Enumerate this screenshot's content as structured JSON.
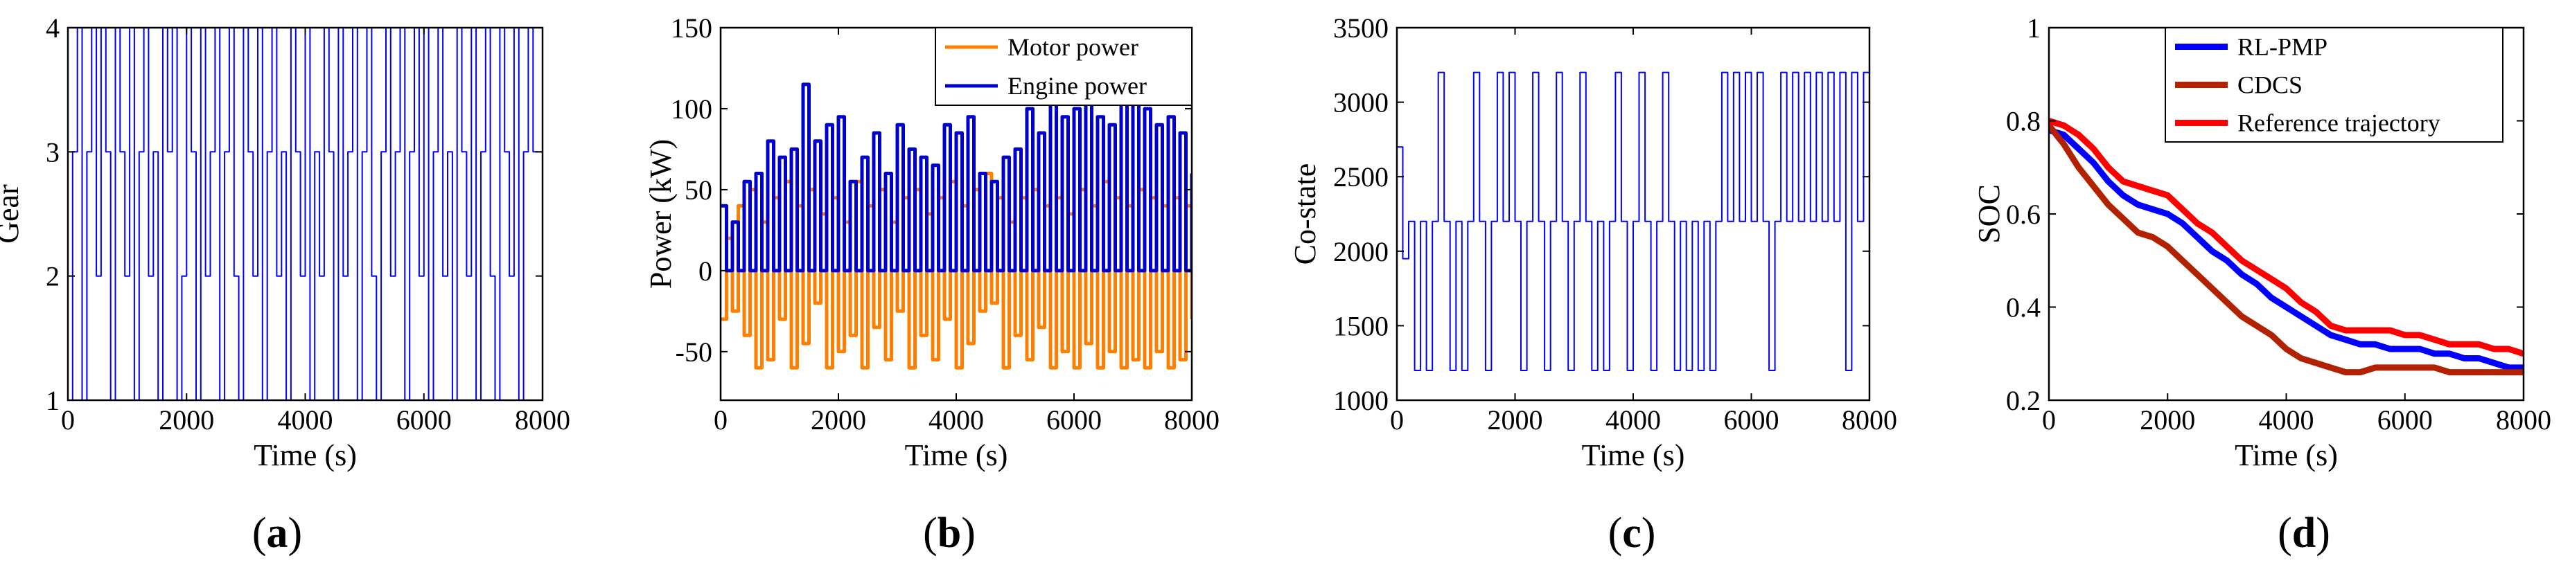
{
  "figure": {
    "panels": [
      {
        "label_open": "(",
        "label_letter": "a",
        "label_close": ")"
      },
      {
        "label_open": "(",
        "label_letter": "b",
        "label_close": ")"
      },
      {
        "label_open": "(",
        "label_letter": "c",
        "label_close": ")"
      },
      {
        "label_open": "(",
        "label_letter": "d",
        "label_close": ")"
      }
    ]
  },
  "chart_data": [
    {
      "type": "line",
      "title": "",
      "xlabel": "Time (s)",
      "ylabel": "Gear",
      "xlim": [
        0,
        8000
      ],
      "ylim": [
        1,
        4
      ],
      "xticks": [
        0,
        2000,
        4000,
        6000,
        8000
      ],
      "yticks": [
        1,
        2,
        3,
        4
      ],
      "series": [
        {
          "color": "#0000ff",
          "x": [
            0,
            80,
            160,
            240,
            320,
            400,
            480,
            560,
            640,
            720,
            800,
            880,
            960,
            1040,
            1120,
            1200,
            1280,
            1360,
            1440,
            1520,
            1600,
            1680,
            1760,
            1840,
            1920,
            2000,
            2080,
            2160,
            2240,
            2320,
            2400,
            2480,
            2560,
            2640,
            2720,
            2800,
            2880,
            2960,
            3040,
            3120,
            3200,
            3280,
            3360,
            3440,
            3520,
            3600,
            3680,
            3760,
            3840,
            3920,
            4000,
            4080,
            4160,
            4240,
            4320,
            4400,
            4480,
            4560,
            4640,
            4720,
            4800,
            4880,
            4960,
            5040,
            5120,
            5200,
            5280,
            5360,
            5440,
            5520,
            5600,
            5680,
            5760,
            5840,
            5920,
            6000,
            6080,
            6160,
            6240,
            6320,
            6400,
            6480,
            6560,
            6640,
            6720,
            6800,
            6880,
            6960,
            7040,
            7120,
            7200,
            7280,
            7360,
            7440,
            7520,
            7600,
            7680,
            7760,
            7840,
            7920,
            8000
          ],
          "values": [
            1,
            3,
            4,
            1,
            3,
            4,
            2,
            4,
            3,
            1,
            4,
            3,
            2,
            4,
            1,
            3,
            4,
            2,
            3,
            1,
            4,
            3,
            4,
            1,
            2,
            4,
            3,
            1,
            4,
            2,
            3,
            4,
            1,
            3,
            4,
            2,
            1,
            4,
            3,
            2,
            4,
            1,
            3,
            4,
            2,
            3,
            1,
            4,
            3,
            2,
            4,
            1,
            3,
            2,
            4,
            3,
            1,
            4,
            2,
            3,
            4,
            1,
            3,
            4,
            2,
            1,
            3,
            4,
            2,
            3,
            4,
            1,
            3,
            4,
            2,
            4,
            1,
            3,
            4,
            2,
            3,
            1,
            4,
            3,
            2,
            4,
            1,
            3,
            4,
            2,
            1,
            4,
            3,
            2,
            4,
            1,
            3,
            4,
            3,
            3,
            3
          ]
        }
      ]
    },
    {
      "type": "line",
      "title": "",
      "xlabel": "Time (s)",
      "ylabel": "Power (kW)",
      "xlim": [
        0,
        8000
      ],
      "ylim": [
        -80,
        150
      ],
      "xticks": [
        0,
        2000,
        4000,
        6000,
        8000
      ],
      "yticks": [
        -50,
        0,
        50,
        100,
        150
      ],
      "legend_position": "top-right",
      "series": [
        {
          "name": "Motor power",
          "color": "#ff8000",
          "x": [
            0,
            100,
            200,
            300,
            400,
            500,
            600,
            700,
            800,
            900,
            1000,
            1100,
            1200,
            1300,
            1400,
            1500,
            1600,
            1700,
            1800,
            1900,
            2000,
            2100,
            2200,
            2300,
            2400,
            2500,
            2600,
            2700,
            2800,
            2900,
            3000,
            3100,
            3200,
            3300,
            3400,
            3500,
            3600,
            3700,
            3800,
            3900,
            4000,
            4100,
            4200,
            4300,
            4400,
            4500,
            4600,
            4700,
            4800,
            4900,
            5000,
            5100,
            5200,
            5300,
            5400,
            5500,
            5600,
            5700,
            5800,
            5900,
            6000,
            6100,
            6200,
            6300,
            6400,
            6500,
            6600,
            6700,
            6800,
            6900,
            7000,
            7100,
            7200,
            7300,
            7400,
            7500,
            7600,
            7700,
            7800,
            7900,
            8000
          ],
          "values": [
            -30,
            20,
            -25,
            40,
            -40,
            50,
            -60,
            30,
            -55,
            45,
            -30,
            55,
            -60,
            40,
            -45,
            50,
            -20,
            35,
            -60,
            45,
            -50,
            30,
            -40,
            55,
            -60,
            40,
            -35,
            50,
            -55,
            30,
            -25,
            45,
            -60,
            50,
            -40,
            35,
            -55,
            45,
            -30,
            55,
            -60,
            40,
            -45,
            50,
            -25,
            60,
            -20,
            45,
            -60,
            30,
            -40,
            45,
            -55,
            50,
            -35,
            40,
            -60,
            45,
            -50,
            35,
            -60,
            50,
            -45,
            40,
            -60,
            55,
            -50,
            45,
            -60,
            40,
            -55,
            50,
            -60,
            45,
            -50,
            40,
            -60,
            45,
            -55,
            40,
            -30
          ]
        },
        {
          "name": "Engine power",
          "color": "#0000cc",
          "x": [
            0,
            100,
            200,
            300,
            400,
            500,
            600,
            700,
            800,
            900,
            1000,
            1100,
            1200,
            1300,
            1400,
            1500,
            1600,
            1700,
            1800,
            1900,
            2000,
            2100,
            2200,
            2300,
            2400,
            2500,
            2600,
            2700,
            2800,
            2900,
            3000,
            3100,
            3200,
            3300,
            3400,
            3500,
            3600,
            3700,
            3800,
            3900,
            4000,
            4100,
            4200,
            4300,
            4400,
            4500,
            4600,
            4700,
            4800,
            4900,
            5000,
            5100,
            5200,
            5300,
            5400,
            5500,
            5600,
            5700,
            5800,
            5900,
            6000,
            6100,
            6200,
            6300,
            6400,
            6500,
            6600,
            6700,
            6800,
            6900,
            7000,
            7100,
            7200,
            7300,
            7400,
            7500,
            7600,
            7700,
            7800,
            7900,
            8000
          ],
          "values": [
            40,
            0,
            30,
            0,
            55,
            0,
            60,
            0,
            80,
            0,
            70,
            0,
            75,
            0,
            115,
            0,
            80,
            0,
            90,
            0,
            95,
            0,
            55,
            0,
            70,
            0,
            85,
            0,
            60,
            0,
            90,
            0,
            75,
            0,
            70,
            0,
            65,
            0,
            90,
            0,
            85,
            0,
            95,
            0,
            60,
            0,
            55,
            0,
            70,
            0,
            75,
            0,
            100,
            0,
            85,
            0,
            110,
            0,
            95,
            0,
            100,
            0,
            110,
            0,
            95,
            0,
            90,
            0,
            105,
            0,
            115,
            0,
            100,
            0,
            90,
            0,
            95,
            0,
            85,
            0,
            60
          ]
        }
      ]
    },
    {
      "type": "line",
      "title": "",
      "xlabel": "Time (s)",
      "ylabel": "Co-state",
      "xlim": [
        0,
        8000
      ],
      "ylim": [
        1000,
        3500
      ],
      "xticks": [
        0,
        2000,
        4000,
        6000,
        8000
      ],
      "yticks": [
        1000,
        1500,
        2000,
        2500,
        3000,
        3500
      ],
      "series": [
        {
          "color": "#0000ff",
          "x": [
            0,
            100,
            200,
            300,
            400,
            500,
            600,
            700,
            800,
            900,
            1000,
            1100,
            1200,
            1300,
            1400,
            1500,
            1600,
            1700,
            1800,
            1900,
            2000,
            2100,
            2200,
            2300,
            2400,
            2500,
            2600,
            2700,
            2800,
            2900,
            3000,
            3100,
            3200,
            3300,
            3400,
            3500,
            3600,
            3700,
            3800,
            3900,
            4000,
            4100,
            4200,
            4300,
            4400,
            4500,
            4600,
            4700,
            4800,
            4900,
            5000,
            5100,
            5200,
            5300,
            5400,
            5500,
            5600,
            5700,
            5800,
            5900,
            6000,
            6100,
            6200,
            6300,
            6400,
            6500,
            6600,
            6700,
            6800,
            6900,
            7000,
            7100,
            7200,
            7300,
            7400,
            7500,
            7600,
            7700,
            7800,
            7900,
            8000
          ],
          "values": [
            2700,
            1950,
            2200,
            1200,
            2200,
            1200,
            2200,
            3200,
            2200,
            1200,
            2200,
            1200,
            2200,
            3200,
            2200,
            1200,
            2200,
            3200,
            2200,
            3200,
            2200,
            1200,
            2200,
            3200,
            2200,
            1200,
            2200,
            3200,
            2200,
            1200,
            2200,
            3200,
            2200,
            1200,
            2200,
            1200,
            2200,
            3200,
            2200,
            1200,
            2200,
            3200,
            2200,
            1200,
            2200,
            3200,
            2200,
            1200,
            2200,
            1200,
            2200,
            1200,
            2200,
            1200,
            2200,
            3200,
            2200,
            3200,
            2200,
            3200,
            2200,
            3200,
            2200,
            1200,
            2200,
            3200,
            2200,
            3200,
            2200,
            3200,
            2200,
            3200,
            2200,
            3200,
            2200,
            3200,
            1200,
            3200,
            2200,
            3200,
            2100
          ]
        }
      ]
    },
    {
      "type": "line",
      "title": "",
      "xlabel": "Time (s)",
      "ylabel": "SOC",
      "xlim": [
        0,
        8000
      ],
      "ylim": [
        0.2,
        1
      ],
      "xticks": [
        0,
        2000,
        4000,
        6000,
        8000
      ],
      "yticks": [
        0.2,
        0.4,
        0.6,
        0.8,
        1
      ],
      "legend_position": "top-right",
      "series": [
        {
          "name": "RL-PMP",
          "color": "#0000ff",
          "x": [
            0,
            250,
            500,
            750,
            1000,
            1250,
            1500,
            1750,
            2000,
            2250,
            2500,
            2750,
            3000,
            3250,
            3500,
            3750,
            4000,
            4250,
            4500,
            4750,
            5000,
            5250,
            5500,
            5750,
            6000,
            6250,
            6500,
            6750,
            7000,
            7250,
            7500,
            7750,
            8000
          ],
          "values": [
            0.78,
            0.77,
            0.74,
            0.71,
            0.67,
            0.64,
            0.62,
            0.61,
            0.6,
            0.58,
            0.55,
            0.52,
            0.5,
            0.47,
            0.45,
            0.42,
            0.4,
            0.38,
            0.36,
            0.34,
            0.33,
            0.32,
            0.32,
            0.31,
            0.31,
            0.31,
            0.3,
            0.3,
            0.29,
            0.29,
            0.28,
            0.27,
            0.27
          ]
        },
        {
          "name": "CDCS",
          "color": "#b22200",
          "x": [
            0,
            250,
            500,
            750,
            1000,
            1250,
            1500,
            1750,
            2000,
            2250,
            2500,
            2750,
            3000,
            3250,
            3500,
            3750,
            4000,
            4250,
            4500,
            4750,
            5000,
            5250,
            5500,
            5750,
            6000,
            6250,
            6500,
            6750,
            7000,
            7250,
            7500,
            7750,
            8000
          ],
          "values": [
            0.79,
            0.75,
            0.7,
            0.66,
            0.62,
            0.59,
            0.56,
            0.55,
            0.53,
            0.5,
            0.47,
            0.44,
            0.41,
            0.38,
            0.36,
            0.34,
            0.31,
            0.29,
            0.28,
            0.27,
            0.26,
            0.26,
            0.27,
            0.27,
            0.27,
            0.27,
            0.27,
            0.26,
            0.26,
            0.26,
            0.26,
            0.26,
            0.26
          ]
        },
        {
          "name": "Reference trajectory",
          "color": "#ff0000",
          "x": [
            0,
            250,
            500,
            750,
            1000,
            1250,
            1500,
            1750,
            2000,
            2250,
            2500,
            2750,
            3000,
            3250,
            3500,
            3750,
            4000,
            4250,
            4500,
            4750,
            5000,
            5250,
            5500,
            5750,
            6000,
            6250,
            6500,
            6750,
            7000,
            7250,
            7500,
            7750,
            8000
          ],
          "values": [
            0.8,
            0.79,
            0.77,
            0.74,
            0.7,
            0.67,
            0.66,
            0.65,
            0.64,
            0.61,
            0.58,
            0.56,
            0.53,
            0.5,
            0.48,
            0.46,
            0.44,
            0.41,
            0.39,
            0.36,
            0.35,
            0.35,
            0.35,
            0.35,
            0.34,
            0.34,
            0.33,
            0.32,
            0.32,
            0.32,
            0.31,
            0.31,
            0.3
          ]
        }
      ]
    }
  ]
}
